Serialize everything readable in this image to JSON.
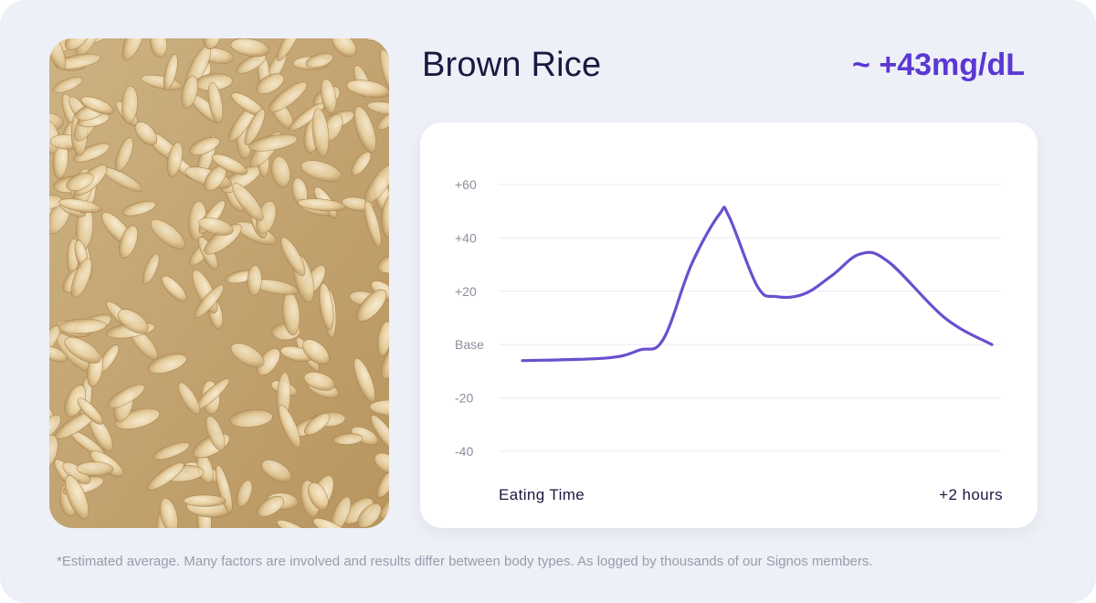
{
  "food": {
    "name": "Brown Rice",
    "glucose_change": "~ +43mg/dL",
    "photo_icon": "brown-rice-photo"
  },
  "footnote": "*Estimated average. Many factors are involved and results differ between body types. As logged by thousands of our Signos members.",
  "colors": {
    "accent": "#5b37d3",
    "line": "#6a4fcf",
    "grid": "#ececf2",
    "tick": "#8d8e9c",
    "background": "#eef0f7"
  },
  "chart_data": {
    "type": "line",
    "title": "",
    "xlabel": "",
    "ylabel": "",
    "x_start_label": "Eating Time",
    "x_end_label": "+2 hours",
    "ylim": [
      -40,
      60
    ],
    "y_ticks": [
      {
        "value": 60,
        "label": "+60"
      },
      {
        "value": 40,
        "label": "+40"
      },
      {
        "value": 20,
        "label": "+20"
      },
      {
        "value": 0,
        "label": "Base"
      },
      {
        "value": -20,
        "label": "-20"
      },
      {
        "value": -40,
        "label": "-40"
      }
    ],
    "series": [
      {
        "name": "glucose",
        "x": [
          0,
          0.18,
          0.25,
          0.3,
          0.36,
          0.42,
          0.44,
          0.5,
          0.54,
          0.6,
          0.66,
          0.72,
          0.78,
          0.9,
          1.0
        ],
        "values": [
          -6,
          -5,
          -2,
          2,
          30,
          49,
          48,
          22,
          18,
          19,
          26,
          34,
          31,
          10,
          0
        ]
      }
    ]
  }
}
